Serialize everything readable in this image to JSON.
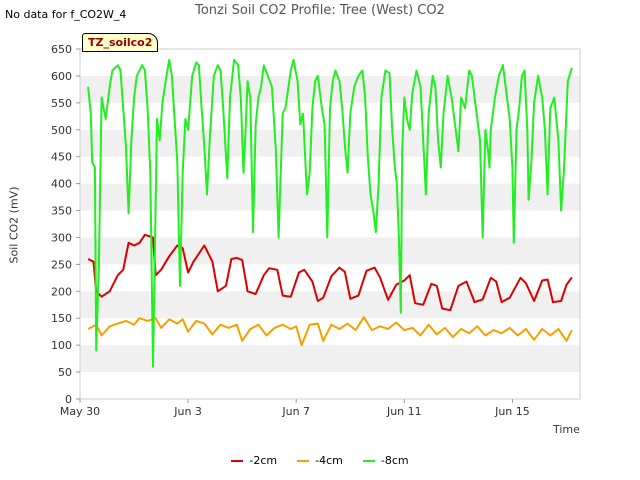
{
  "no_data_note": "No data for f_CO2W_4",
  "badge_label": "TZ_soilco2",
  "chart_data": {
    "type": "line",
    "title": "Tonzi Soil CO2 Profile: Tree (West) CO2",
    "xlabel": "Time",
    "ylabel": "Soil CO2 (mV)",
    "ylim": [
      0,
      650
    ],
    "yticks": [
      0,
      50,
      100,
      150,
      200,
      250,
      300,
      350,
      400,
      450,
      500,
      550,
      600,
      650
    ],
    "xlim": [
      0,
      18.5
    ],
    "xticks": [
      {
        "value": 0,
        "label": "May 30"
      },
      {
        "value": 4,
        "label": "Jun 3"
      },
      {
        "value": 8,
        "label": "Jun 7"
      },
      {
        "value": 12,
        "label": "Jun 11"
      },
      {
        "value": 16,
        "label": "Jun 15"
      }
    ],
    "grid": "horizontal banded",
    "legend_position": "bottom",
    "series": [
      {
        "name": "-2cm",
        "color": "#dd0000",
        "points": [
          [
            0.3,
            260
          ],
          [
            0.5,
            255
          ],
          [
            0.6,
            200
          ],
          [
            0.8,
            190
          ],
          [
            1.1,
            200
          ],
          [
            1.4,
            230
          ],
          [
            1.6,
            240
          ],
          [
            1.8,
            290
          ],
          [
            2.0,
            285
          ],
          [
            2.2,
            290
          ],
          [
            2.4,
            305
          ],
          [
            2.7,
            300
          ],
          [
            2.8,
            230
          ],
          [
            3.0,
            240
          ],
          [
            3.3,
            265
          ],
          [
            3.6,
            285
          ],
          [
            3.8,
            280
          ],
          [
            4.0,
            235
          ],
          [
            4.2,
            255
          ],
          [
            4.6,
            285
          ],
          [
            4.9,
            255
          ],
          [
            5.1,
            200
          ],
          [
            5.4,
            210
          ],
          [
            5.6,
            260
          ],
          [
            5.8,
            262
          ],
          [
            6.0,
            258
          ],
          [
            6.2,
            200
          ],
          [
            6.5,
            195
          ],
          [
            6.8,
            230
          ],
          [
            7.0,
            243
          ],
          [
            7.3,
            240
          ],
          [
            7.5,
            192
          ],
          [
            7.8,
            190
          ],
          [
            8.1,
            235
          ],
          [
            8.3,
            240
          ],
          [
            8.6,
            218
          ],
          [
            8.8,
            182
          ],
          [
            9.0,
            188
          ],
          [
            9.3,
            228
          ],
          [
            9.6,
            244
          ],
          [
            9.8,
            236
          ],
          [
            10.0,
            186
          ],
          [
            10.3,
            192
          ],
          [
            10.6,
            238
          ],
          [
            10.9,
            244
          ],
          [
            11.1,
            226
          ],
          [
            11.4,
            184
          ],
          [
            11.7,
            212
          ],
          [
            12.0,
            220
          ],
          [
            12.2,
            230
          ],
          [
            12.4,
            178
          ],
          [
            12.7,
            175
          ],
          [
            13.0,
            214
          ],
          [
            13.2,
            210
          ],
          [
            13.4,
            168
          ],
          [
            13.7,
            165
          ],
          [
            14.0,
            210
          ],
          [
            14.3,
            218
          ],
          [
            14.6,
            180
          ],
          [
            14.9,
            185
          ],
          [
            15.2,
            225
          ],
          [
            15.4,
            218
          ],
          [
            15.6,
            180
          ],
          [
            15.9,
            188
          ],
          [
            16.3,
            225
          ],
          [
            16.5,
            215
          ],
          [
            16.8,
            182
          ],
          [
            17.1,
            220
          ],
          [
            17.3,
            222
          ],
          [
            17.5,
            180
          ],
          [
            17.8,
            182
          ],
          [
            18.0,
            212
          ],
          [
            18.2,
            226
          ]
        ]
      },
      {
        "name": "-4cm",
        "color": "#f5a000",
        "points": [
          [
            0.3,
            130
          ],
          [
            0.6,
            138
          ],
          [
            0.8,
            118
          ],
          [
            1.1,
            135
          ],
          [
            1.4,
            140
          ],
          [
            1.7,
            145
          ],
          [
            2.0,
            138
          ],
          [
            2.2,
            150
          ],
          [
            2.5,
            145
          ],
          [
            2.8,
            150
          ],
          [
            3.0,
            132
          ],
          [
            3.3,
            148
          ],
          [
            3.6,
            140
          ],
          [
            3.8,
            148
          ],
          [
            4.0,
            125
          ],
          [
            4.3,
            145
          ],
          [
            4.6,
            140
          ],
          [
            4.9,
            120
          ],
          [
            5.2,
            138
          ],
          [
            5.5,
            132
          ],
          [
            5.8,
            138
          ],
          [
            6.0,
            108
          ],
          [
            6.3,
            130
          ],
          [
            6.6,
            138
          ],
          [
            6.9,
            118
          ],
          [
            7.2,
            132
          ],
          [
            7.5,
            138
          ],
          [
            7.8,
            130
          ],
          [
            8.0,
            135
          ],
          [
            8.2,
            100
          ],
          [
            8.5,
            138
          ],
          [
            8.8,
            140
          ],
          [
            9.0,
            108
          ],
          [
            9.3,
            138
          ],
          [
            9.6,
            130
          ],
          [
            9.9,
            140
          ],
          [
            10.2,
            128
          ],
          [
            10.5,
            152
          ],
          [
            10.8,
            128
          ],
          [
            11.1,
            135
          ],
          [
            11.4,
            130
          ],
          [
            11.7,
            142
          ],
          [
            12.0,
            128
          ],
          [
            12.3,
            132
          ],
          [
            12.6,
            118
          ],
          [
            12.9,
            138
          ],
          [
            13.2,
            120
          ],
          [
            13.5,
            132
          ],
          [
            13.8,
            115
          ],
          [
            14.1,
            130
          ],
          [
            14.4,
            122
          ],
          [
            14.7,
            135
          ],
          [
            15.0,
            118
          ],
          [
            15.3,
            128
          ],
          [
            15.6,
            122
          ],
          [
            15.9,
            132
          ],
          [
            16.2,
            118
          ],
          [
            16.5,
            130
          ],
          [
            16.8,
            110
          ],
          [
            17.1,
            130
          ],
          [
            17.4,
            118
          ],
          [
            17.7,
            130
          ],
          [
            18.0,
            108
          ],
          [
            18.2,
            128
          ]
        ]
      },
      {
        "name": "-8cm",
        "color": "#22ee22",
        "points": [
          [
            0.3,
            580
          ],
          [
            0.4,
            530
          ],
          [
            0.45,
            440
          ],
          [
            0.55,
            430
          ],
          [
            0.6,
            90
          ],
          [
            0.7,
            250
          ],
          [
            0.8,
            560
          ],
          [
            0.95,
            520
          ],
          [
            1.1,
            580
          ],
          [
            1.2,
            610
          ],
          [
            1.4,
            620
          ],
          [
            1.5,
            610
          ],
          [
            1.6,
            540
          ],
          [
            1.7,
            470
          ],
          [
            1.8,
            345
          ],
          [
            1.9,
            480
          ],
          [
            2.0,
            560
          ],
          [
            2.1,
            600
          ],
          [
            2.3,
            620
          ],
          [
            2.4,
            610
          ],
          [
            2.5,
            540
          ],
          [
            2.6,
            420
          ],
          [
            2.7,
            60
          ],
          [
            2.75,
            200
          ],
          [
            2.85,
            520
          ],
          [
            2.95,
            480
          ],
          [
            3.05,
            550
          ],
          [
            3.2,
            600
          ],
          [
            3.3,
            630
          ],
          [
            3.4,
            600
          ],
          [
            3.5,
            520
          ],
          [
            3.6,
            440
          ],
          [
            3.7,
            210
          ],
          [
            3.8,
            420
          ],
          [
            3.9,
            520
          ],
          [
            4.0,
            500
          ],
          [
            4.15,
            600
          ],
          [
            4.3,
            625
          ],
          [
            4.4,
            620
          ],
          [
            4.5,
            540
          ],
          [
            4.6,
            470
          ],
          [
            4.7,
            380
          ],
          [
            4.8,
            480
          ],
          [
            4.95,
            600
          ],
          [
            5.1,
            620
          ],
          [
            5.2,
            610
          ],
          [
            5.3,
            540
          ],
          [
            5.45,
            410
          ],
          [
            5.55,
            560
          ],
          [
            5.7,
            630
          ],
          [
            5.85,
            620
          ],
          [
            5.95,
            560
          ],
          [
            6.05,
            420
          ],
          [
            6.1,
            470
          ],
          [
            6.2,
            590
          ],
          [
            6.3,
            560
          ],
          [
            6.4,
            310
          ],
          [
            6.5,
            510
          ],
          [
            6.6,
            560
          ],
          [
            6.7,
            580
          ],
          [
            6.8,
            620
          ],
          [
            6.95,
            600
          ],
          [
            7.1,
            580
          ],
          [
            7.25,
            460
          ],
          [
            7.35,
            300
          ],
          [
            7.5,
            530
          ],
          [
            7.6,
            540
          ],
          [
            7.8,
            610
          ],
          [
            7.9,
            630
          ],
          [
            8.05,
            590
          ],
          [
            8.15,
            510
          ],
          [
            8.25,
            530
          ],
          [
            8.4,
            380
          ],
          [
            8.5,
            420
          ],
          [
            8.6,
            540
          ],
          [
            8.7,
            590
          ],
          [
            8.8,
            600
          ],
          [
            8.95,
            540
          ],
          [
            9.05,
            510
          ],
          [
            9.15,
            300
          ],
          [
            9.25,
            540
          ],
          [
            9.35,
            590
          ],
          [
            9.45,
            610
          ],
          [
            9.6,
            590
          ],
          [
            9.7,
            540
          ],
          [
            9.8,
            470
          ],
          [
            9.9,
            420
          ],
          [
            10.0,
            530
          ],
          [
            10.15,
            580
          ],
          [
            10.3,
            600
          ],
          [
            10.45,
            610
          ],
          [
            10.55,
            560
          ],
          [
            10.65,
            450
          ],
          [
            10.75,
            380
          ],
          [
            10.85,
            350
          ],
          [
            10.95,
            310
          ],
          [
            11.05,
            400
          ],
          [
            11.15,
            560
          ],
          [
            11.3,
            610
          ],
          [
            11.45,
            605
          ],
          [
            11.55,
            500
          ],
          [
            11.65,
            430
          ],
          [
            11.72,
            400
          ],
          [
            11.8,
            300
          ],
          [
            11.87,
            160
          ],
          [
            11.92,
            460
          ],
          [
            12.0,
            560
          ],
          [
            12.1,
            520
          ],
          [
            12.2,
            500
          ],
          [
            12.3,
            570
          ],
          [
            12.45,
            610
          ],
          [
            12.6,
            580
          ],
          [
            12.7,
            480
          ],
          [
            12.8,
            380
          ],
          [
            12.9,
            530
          ],
          [
            13.05,
            600
          ],
          [
            13.15,
            580
          ],
          [
            13.25,
            480
          ],
          [
            13.35,
            430
          ],
          [
            13.45,
            530
          ],
          [
            13.6,
            600
          ],
          [
            13.75,
            560
          ],
          [
            13.9,
            500
          ],
          [
            14.0,
            460
          ],
          [
            14.1,
            560
          ],
          [
            14.25,
            540
          ],
          [
            14.4,
            610
          ],
          [
            14.5,
            600
          ],
          [
            14.6,
            560
          ],
          [
            14.7,
            520
          ],
          [
            14.8,
            480
          ],
          [
            14.9,
            300
          ],
          [
            15.0,
            500
          ],
          [
            15.1,
            460
          ],
          [
            15.15,
            430
          ],
          [
            15.2,
            500
          ],
          [
            15.35,
            560
          ],
          [
            15.5,
            600
          ],
          [
            15.65,
            620
          ],
          [
            15.8,
            560
          ],
          [
            15.9,
            520
          ],
          [
            16.0,
            430
          ],
          [
            16.05,
            290
          ],
          [
            16.15,
            500
          ],
          [
            16.25,
            540
          ],
          [
            16.35,
            600
          ],
          [
            16.45,
            610
          ],
          [
            16.55,
            500
          ],
          [
            16.6,
            370
          ],
          [
            16.7,
            440
          ],
          [
            16.8,
            550
          ],
          [
            16.95,
            600
          ],
          [
            17.1,
            560
          ],
          [
            17.2,
            500
          ],
          [
            17.3,
            380
          ],
          [
            17.4,
            540
          ],
          [
            17.55,
            560
          ],
          [
            17.7,
            480
          ],
          [
            17.8,
            350
          ],
          [
            17.9,
            420
          ],
          [
            18.05,
            590
          ],
          [
            18.2,
            615
          ]
        ]
      }
    ]
  }
}
